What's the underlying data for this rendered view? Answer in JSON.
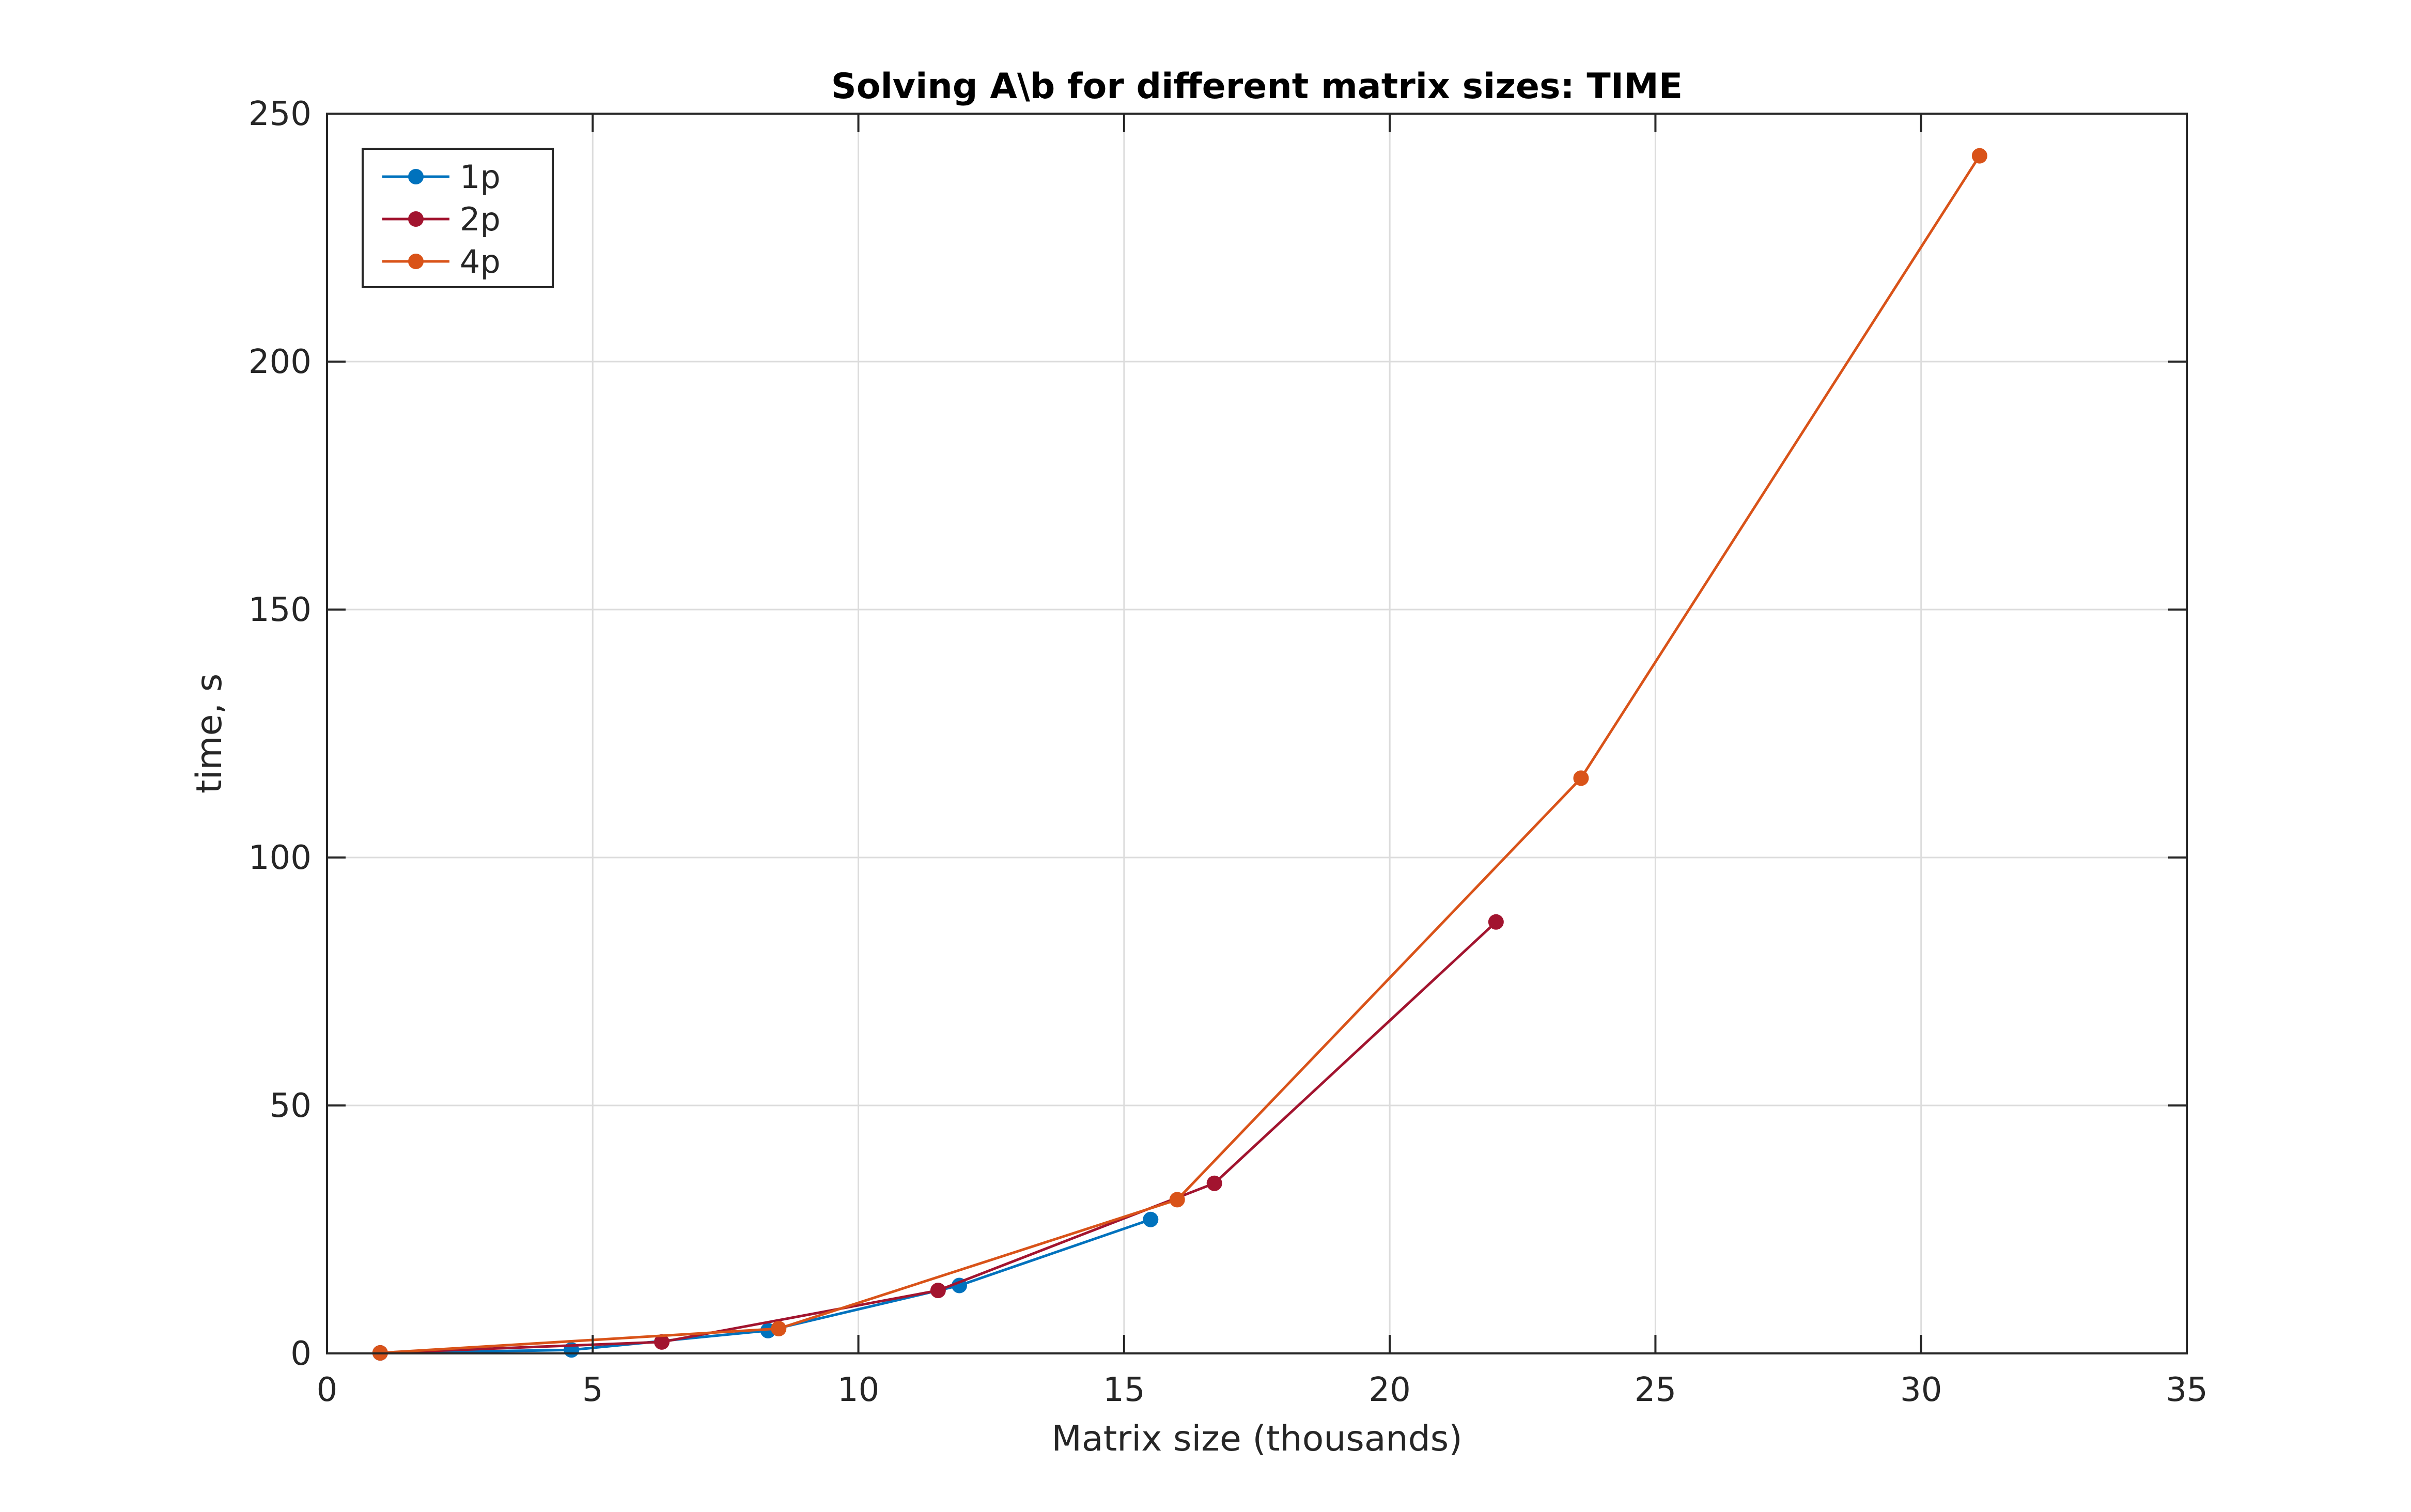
{
  "chart_data": {
    "type": "line",
    "title": "Solving A\\b for different matrix sizes: TIME",
    "xlabel": "Matrix size (thousands)",
    "ylabel": "time, s",
    "xlim": [
      0,
      35
    ],
    "ylim": [
      0,
      250
    ],
    "xticks": [
      0,
      5,
      10,
      15,
      20,
      25,
      30,
      35
    ],
    "yticks": [
      0,
      50,
      100,
      150,
      200,
      250
    ],
    "grid": true,
    "legend_position": "top-left",
    "series": [
      {
        "name": "1p",
        "color": "#0072BD",
        "x": [
          1.0,
          4.6,
          8.3,
          11.9,
          15.5
        ],
        "y": [
          0.1,
          0.7,
          4.6,
          13.7,
          27.0
        ]
      },
      {
        "name": "2p",
        "color": "#A2142F",
        "x": [
          1.0,
          6.3,
          11.5,
          16.7,
          22.0
        ],
        "y": [
          0.1,
          2.3,
          12.7,
          34.3,
          87.0
        ]
      },
      {
        "name": "4p",
        "color": "#D95319",
        "x": [
          1.0,
          8.5,
          16.0,
          23.6,
          31.1
        ],
        "y": [
          0.1,
          5.0,
          31.0,
          116.0,
          241.5
        ]
      }
    ]
  }
}
